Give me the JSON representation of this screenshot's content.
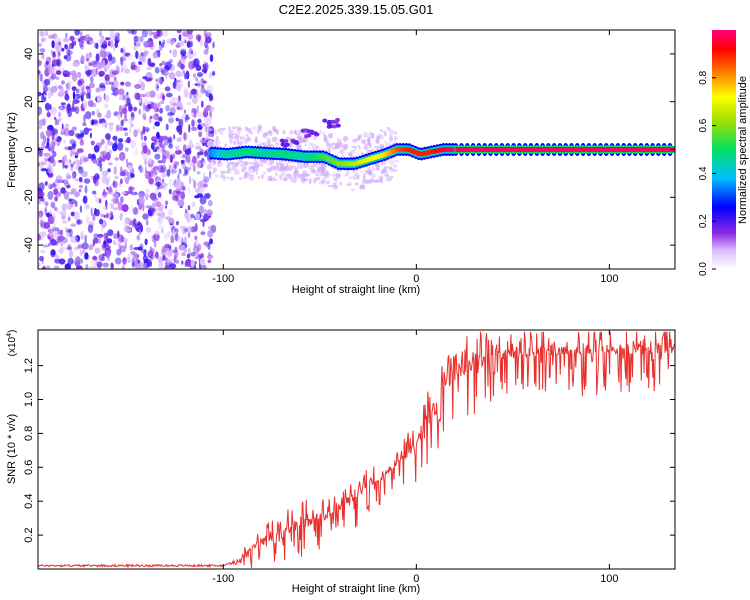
{
  "figure_title": "C2E2.2025.339.15.05.G01",
  "chart_data": [
    {
      "type": "heatmap",
      "name": "spectrogram",
      "title": "C2E2.2025.339.15.05.G01",
      "xlabel": "Height of straight line (km)",
      "ylabel": "Frequency (Hz)",
      "xlim": [
        -196,
        134
      ],
      "ylim": [
        -50,
        50
      ],
      "x_ticks": [
        -100,
        0,
        100
      ],
      "x_tick_labels": [
        "-100",
        "0",
        "100"
      ],
      "y_ticks": [
        -40,
        -20,
        0,
        20,
        40
      ],
      "y_tick_labels": [
        "-40",
        "-20",
        "0",
        "20",
        "40"
      ],
      "colorbar": {
        "label": "Normalized spectral amplitude",
        "range": [
          0,
          1
        ],
        "ticks": [
          0.0,
          0.2,
          0.4,
          0.6,
          0.8
        ],
        "tick_labels": [
          "0.0",
          "0.2",
          "0.4",
          "0.6",
          "0.8"
        ]
      },
      "noise_region_x": [
        -196,
        -105
      ],
      "noise_region_amplitude": 0.12,
      "signal_track": [
        {
          "x": -106,
          "freq": -1.5,
          "amp": 0.35
        },
        {
          "x": -98,
          "freq": -2,
          "amp": 0.45
        },
        {
          "x": -88,
          "freq": -1,
          "amp": 0.5
        },
        {
          "x": -78,
          "freq": -1.5,
          "amp": 0.45
        },
        {
          "x": -68,
          "freq": -2,
          "amp": 0.5
        },
        {
          "x": -58,
          "freq": -3,
          "amp": 0.45
        },
        {
          "x": -48,
          "freq": -3,
          "amp": 0.55
        },
        {
          "x": -40,
          "freq": -6,
          "amp": 0.6
        },
        {
          "x": -32,
          "freq": -6,
          "amp": 0.65
        },
        {
          "x": -24,
          "freq": -4,
          "amp": 0.7
        },
        {
          "x": -16,
          "freq": -2,
          "amp": 0.75
        },
        {
          "x": -10,
          "freq": 0,
          "amp": 0.85
        },
        {
          "x": -4,
          "freq": 0,
          "amp": 0.9
        },
        {
          "x": 2,
          "freq": -2,
          "amp": 0.9
        },
        {
          "x": 8,
          "freq": -1,
          "amp": 0.9
        },
        {
          "x": 14,
          "freq": 0,
          "amp": 0.95
        },
        {
          "x": 20,
          "freq": 0,
          "amp": 1.0
        },
        {
          "x": 134,
          "freq": 0,
          "amp": 1.0
        }
      ],
      "secondary_branch": [
        {
          "x": -66,
          "freq": 3
        },
        {
          "x": -55,
          "freq": 7
        },
        {
          "x": -45,
          "freq": 11
        }
      ]
    },
    {
      "type": "line",
      "name": "snr",
      "xlabel": "Height of straight line (km)",
      "ylabel": "SNR (10 * v/v)",
      "y_multiplier_label": "(x10",
      "y_multiplier_exponent": "4",
      "y_multiplier_close": ")",
      "xlim": [
        -196,
        134
      ],
      "ylim": [
        0,
        1.41
      ],
      "x_ticks": [
        -100,
        0,
        100
      ],
      "x_tick_labels": [
        "-100",
        "0",
        "100"
      ],
      "y_ticks": [
        0.2,
        0.4,
        0.6,
        0.8,
        1.0,
        1.2
      ],
      "y_tick_labels": [
        "0.2",
        "0.4",
        "0.6",
        "0.8",
        "1.0",
        "1.2"
      ],
      "color": "#e8302e",
      "series": [
        {
          "name": "SNR",
          "x": [
            -196,
            -150,
            -120,
            -100,
            -92,
            -86,
            -80,
            -70,
            -60,
            -50,
            -40,
            -30,
            -20,
            -10,
            0,
            5,
            10,
            15,
            20,
            25,
            30,
            40,
            50,
            60,
            70,
            80,
            90,
            100,
            110,
            120,
            134
          ],
          "y": [
            0.02,
            0.02,
            0.02,
            0.02,
            0.04,
            0.12,
            0.16,
            0.2,
            0.26,
            0.3,
            0.36,
            0.44,
            0.52,
            0.62,
            0.74,
            0.86,
            0.96,
            1.08,
            1.15,
            1.18,
            1.22,
            1.25,
            1.27,
            1.28,
            1.29,
            1.29,
            1.29,
            1.29,
            1.3,
            1.3,
            1.3
          ],
          "spike_amplitude": [
            0,
            0,
            0,
            0,
            0.04,
            0.12,
            0.16,
            0.26,
            0.24,
            0.2,
            0.2,
            0.18,
            0.2,
            0.22,
            0.24,
            0.28,
            0.3,
            0.26,
            0.3,
            0.32,
            0.32,
            0.28,
            0.26,
            0.24,
            0.24,
            0.26,
            0.28,
            0.28,
            0.26,
            0.26,
            0.26
          ]
        }
      ]
    }
  ]
}
